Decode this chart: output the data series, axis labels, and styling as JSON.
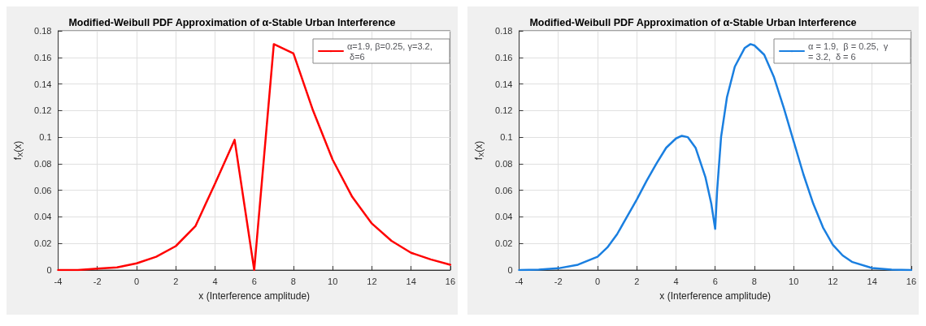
{
  "chart_data": [
    {
      "type": "line",
      "title": "Modified-Weibull PDF Approximation of α-Stable Urban Interference",
      "xlabel": "x (Interference amplitude)",
      "ylabel": "f$_{X}$(x)",
      "x": [
        -4,
        -3,
        -2,
        -1,
        0,
        1,
        2,
        3,
        4,
        5,
        6,
        7,
        8,
        9,
        10,
        11,
        12,
        13,
        14,
        15,
        16
      ],
      "series": [
        {
          "name": "α=1.9, β=0.25, γ=3.2, δ=6",
          "color": "#ff0000",
          "values": [
            0,
            0,
            0.001,
            0.002,
            0.005,
            0.01,
            0.018,
            0.033,
            0.065,
            0.098,
            0,
            0.17,
            0.163,
            0.12,
            0.083,
            0.055,
            0.035,
            0.022,
            0.013,
            0.008,
            0.004
          ]
        }
      ],
      "xlim": [
        -4,
        16
      ],
      "xticks": [
        -4,
        -2,
        0,
        2,
        4,
        6,
        8,
        10,
        12,
        14,
        16
      ],
      "ylim": [
        0,
        0.18
      ],
      "yticks": [
        0,
        0.02,
        0.04,
        0.06,
        0.08,
        0.1,
        0.12,
        0.14,
        0.16,
        0.18
      ],
      "grid": true,
      "legend": "top right",
      "line_style": "solid"
    },
    {
      "type": "line",
      "title": "Modified-Weibull PDF Approximation of α-Stable Urban Interference",
      "xlabel": "x (Interference amplitude)",
      "ylabel": "f$_{X}$(x)",
      "x": [
        -4,
        -3,
        -2,
        -1,
        0,
        0.5,
        1,
        1.5,
        2,
        2.5,
        3,
        3.5,
        4,
        4.3,
        4.6,
        5,
        5.5,
        5.8,
        6,
        6.1,
        6.3,
        6.6,
        7,
        7.5,
        7.8,
        8,
        8.5,
        9,
        9.5,
        10,
        10.5,
        11,
        11.5,
        12,
        12.5,
        13,
        14,
        15,
        16
      ],
      "series": [
        {
          "name": "α = 1.9,  β = 0.25,  γ = 3.2,  δ = 6",
          "color": "#1a7fe0",
          "values": [
            0,
            0.0003,
            0.0013,
            0.004,
            0.01,
            0.017,
            0.027,
            0.04,
            0.053,
            0.067,
            0.08,
            0.092,
            0.099,
            0.101,
            0.1,
            0.092,
            0.07,
            0.05,
            0.031,
            0.06,
            0.1,
            0.13,
            0.153,
            0.167,
            0.17,
            0.169,
            0.162,
            0.145,
            0.122,
            0.097,
            0.072,
            0.05,
            0.032,
            0.019,
            0.011,
            0.006,
            0.0015,
            0.0003,
            0
          ]
        }
      ],
      "xlim": [
        -4,
        16
      ],
      "xticks": [
        -4,
        -2,
        0,
        2,
        4,
        6,
        8,
        10,
        12,
        14,
        16
      ],
      "ylim": [
        0,
        0.18
      ],
      "yticks": [
        0,
        0.02,
        0.04,
        0.06,
        0.08,
        0.1,
        0.12,
        0.14,
        0.16,
        0.18
      ],
      "grid": true,
      "legend": "top right",
      "line_style": "solid"
    }
  ]
}
